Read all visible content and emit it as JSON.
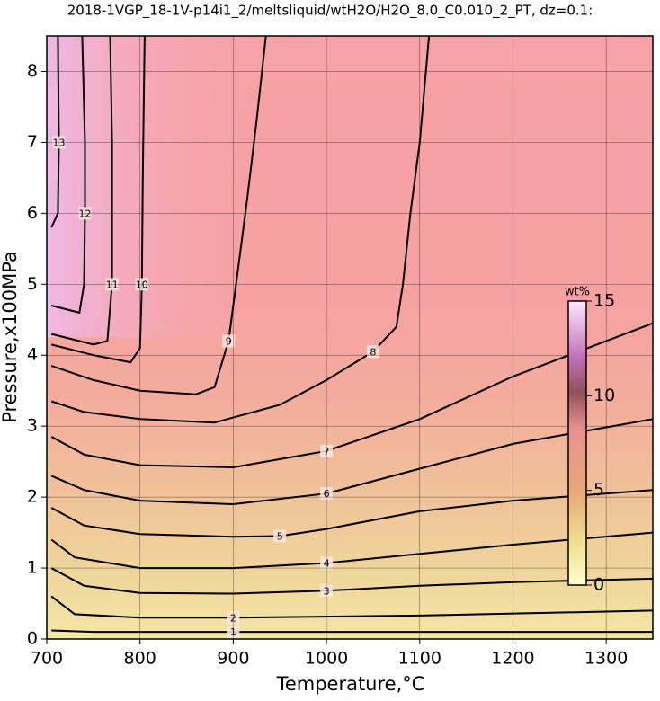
{
  "chart_data": {
    "type": "contour",
    "title": "2018-1VGP_18-1V-p14i1_2/meltsliquid/wtH2O/H2O_8.0_C0.010_2_PT, dz=0.1:",
    "x_label": "Temperature,°C",
    "y_label": "Pressure,x100MPa",
    "xlim": [
      700,
      1350
    ],
    "ylim": [
      0,
      8.5
    ],
    "xticks": [
      700,
      800,
      900,
      1000,
      1100,
      1200,
      1300
    ],
    "yticks": [
      0,
      1,
      2,
      3,
      4,
      5,
      6,
      7,
      8
    ],
    "grid": true,
    "line_color": "#000000",
    "series": [
      {
        "level": 1,
        "x": [
          705,
          750,
          900,
          1100,
          1350
        ],
        "y": [
          0.12,
          0.1,
          0.1,
          0.1,
          0.1
        ]
      },
      {
        "level": 2,
        "x": [
          705,
          730,
          800,
          900,
          1100,
          1350
        ],
        "y": [
          0.6,
          0.35,
          0.3,
          0.3,
          0.33,
          0.4
        ]
      },
      {
        "level": 3,
        "x": [
          705,
          740,
          800,
          900,
          1000,
          1100,
          1200,
          1350
        ],
        "y": [
          1.0,
          0.75,
          0.65,
          0.64,
          0.68,
          0.75,
          0.8,
          0.85
        ]
      },
      {
        "level": 4,
        "x": [
          705,
          730,
          800,
          900,
          1000,
          1100,
          1200,
          1350
        ],
        "y": [
          1.4,
          1.15,
          1.0,
          1.0,
          1.07,
          1.2,
          1.33,
          1.5
        ]
      },
      {
        "level": 5,
        "x": [
          705,
          740,
          800,
          900,
          950,
          1000,
          1100,
          1200,
          1350
        ],
        "y": [
          1.85,
          1.6,
          1.48,
          1.44,
          1.45,
          1.55,
          1.8,
          1.95,
          2.1
        ]
      },
      {
        "level": 6,
        "x": [
          705,
          740,
          800,
          900,
          1000,
          1100,
          1200,
          1350
        ],
        "y": [
          2.3,
          2.1,
          1.95,
          1.9,
          2.05,
          2.4,
          2.75,
          3.1
        ]
      },
      {
        "level": 7,
        "x": [
          705,
          740,
          800,
          900,
          1000,
          1100,
          1200,
          1350
        ],
        "y": [
          2.85,
          2.6,
          2.45,
          2.42,
          2.65,
          3.1,
          3.7,
          4.45
        ]
      },
      {
        "level": 8,
        "x": [
          705,
          740,
          800,
          880,
          950,
          1000,
          1050,
          1075,
          1082,
          1090,
          1100,
          1110
        ],
        "y": [
          3.35,
          3.2,
          3.1,
          3.05,
          3.3,
          3.65,
          4.05,
          4.4,
          5,
          6,
          7,
          8.5
        ]
      },
      {
        "level": 9,
        "x": [
          705,
          750,
          800,
          860,
          880,
          895,
          905,
          915,
          925,
          935
        ],
        "y": [
          3.85,
          3.65,
          3.5,
          3.45,
          3.55,
          4.2,
          5.2,
          6.2,
          7.3,
          8.5
        ]
      },
      {
        "level": 10,
        "x": [
          705,
          750,
          790,
          800,
          802,
          803,
          804,
          805
        ],
        "y": [
          4.15,
          4.0,
          3.9,
          4.1,
          5,
          6.5,
          7.5,
          8.5
        ]
      },
      {
        "level": 11,
        "x": [
          705,
          750,
          765,
          770,
          770,
          770,
          768
        ],
        "y": [
          4.3,
          4.15,
          4.2,
          5,
          6,
          7,
          8.5
        ]
      },
      {
        "level": 12,
        "x": [
          705,
          735,
          740,
          741,
          741,
          738
        ],
        "y": [
          4.7,
          4.6,
          5,
          6,
          7,
          8.5
        ]
      },
      {
        "level": 13,
        "x": [
          705,
          712,
          713,
          712
        ],
        "y": [
          5.8,
          6,
          7,
          8.5
        ]
      }
    ],
    "colorbar": {
      "label": "wt%",
      "lim": [
        0,
        15
      ],
      "ticks": [
        0,
        5,
        10,
        15
      ]
    }
  }
}
